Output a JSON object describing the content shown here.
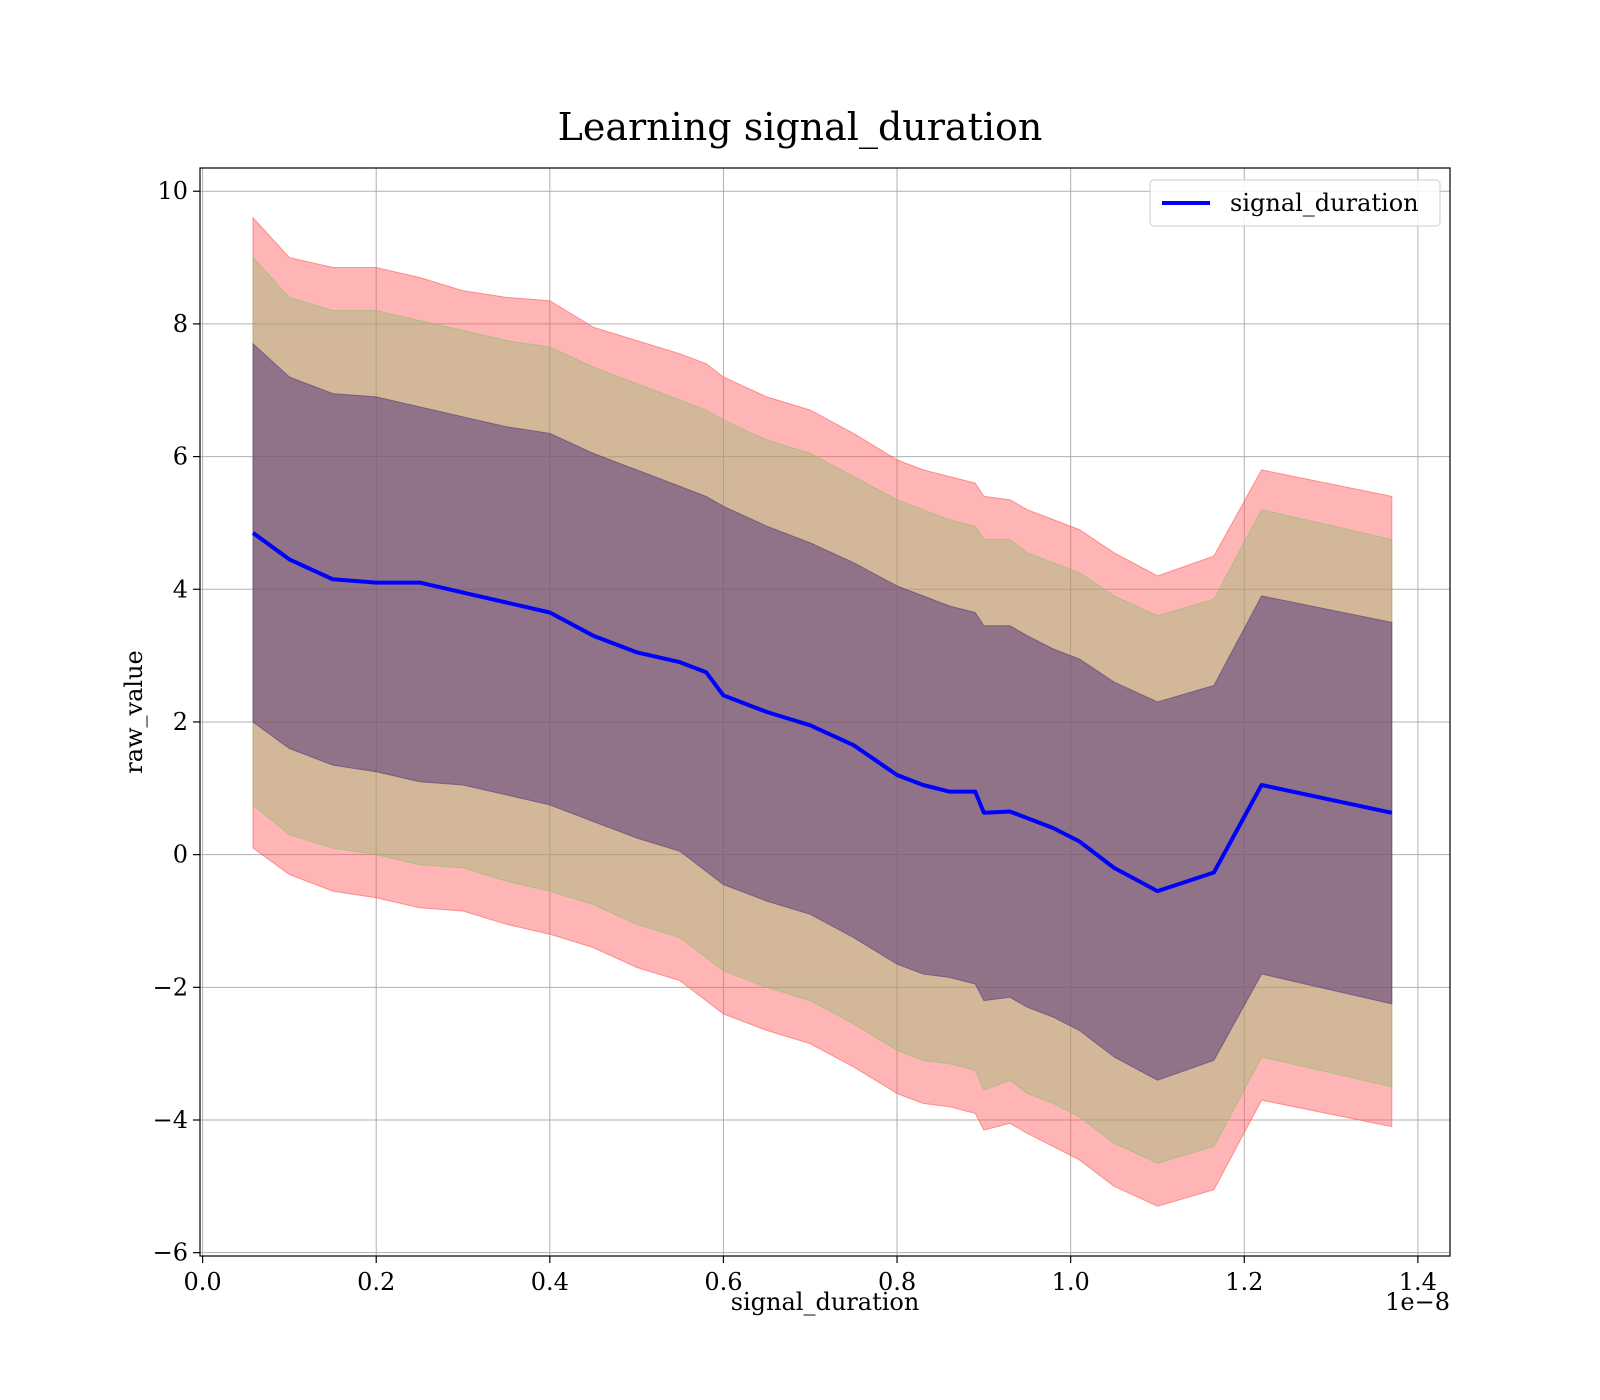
{
  "chart_data": {
    "type": "line",
    "title": "Learning signal_duration",
    "xlabel": "signal_duration",
    "ylabel": "raw_value",
    "x_offset_label": "1e−8",
    "xlim": [
      -0.003,
      1.437
    ],
    "ylim": [
      -6.05,
      10.35
    ],
    "x_ticks": [
      0.0,
      0.2,
      0.4,
      0.6,
      0.8,
      1.0,
      1.2,
      1.4
    ],
    "x_tick_labels": [
      "0.0",
      "0.2",
      "0.4",
      "0.6",
      "0.8",
      "1.0",
      "1.2",
      "1.4"
    ],
    "y_ticks": [
      -6,
      -4,
      -2,
      0,
      2,
      4,
      6,
      8,
      10
    ],
    "y_tick_labels": [
      "−6",
      "−4",
      "−2",
      "0",
      "2",
      "4",
      "6",
      "8",
      "10"
    ],
    "grid": true,
    "legend": {
      "position": "top-right",
      "entries": [
        "signal_duration"
      ]
    },
    "colors": {
      "line": "#0000ff",
      "band_outer": "#ff5a5a",
      "band_mid": "#8fbf70",
      "band_inner": "#5a3a7a"
    },
    "x": [
      0.058,
      0.1,
      0.15,
      0.2,
      0.25,
      0.3,
      0.35,
      0.4,
      0.45,
      0.5,
      0.55,
      0.58,
      0.6,
      0.65,
      0.7,
      0.75,
      0.8,
      0.83,
      0.86,
      0.89,
      0.9,
      0.93,
      0.95,
      0.98,
      1.01,
      1.05,
      1.1,
      1.165,
      1.22,
      1.37
    ],
    "series": [
      {
        "name": "signal_duration",
        "values": [
          4.85,
          4.45,
          4.15,
          4.1,
          4.1,
          3.95,
          3.8,
          3.65,
          3.3,
          3.05,
          2.9,
          2.75,
          2.4,
          2.15,
          1.95,
          1.65,
          1.2,
          1.05,
          0.95,
          0.95,
          0.63,
          0.65,
          0.55,
          0.4,
          0.2,
          -0.2,
          -0.55,
          -0.27,
          1.05,
          0.63
        ]
      }
    ],
    "bands": [
      {
        "name": "outer",
        "upper": [
          9.6,
          9.0,
          8.85,
          8.85,
          8.7,
          8.5,
          8.4,
          8.35,
          7.95,
          7.75,
          7.55,
          7.4,
          7.2,
          6.9,
          6.7,
          6.35,
          5.95,
          5.8,
          5.7,
          5.6,
          5.4,
          5.35,
          5.2,
          5.05,
          4.9,
          4.55,
          4.2,
          4.5,
          5.8,
          5.4
        ],
        "lower": [
          0.1,
          -0.3,
          -0.55,
          -0.65,
          -0.8,
          -0.85,
          -1.05,
          -1.2,
          -1.4,
          -1.7,
          -1.9,
          -2.2,
          -2.4,
          -2.65,
          -2.85,
          -3.2,
          -3.6,
          -3.75,
          -3.8,
          -3.9,
          -4.15,
          -4.05,
          -4.2,
          -4.4,
          -4.6,
          -5.0,
          -5.3,
          -5.05,
          -3.7,
          -4.1
        ]
      },
      {
        "name": "middle",
        "upper": [
          9.0,
          8.4,
          8.2,
          8.2,
          8.05,
          7.9,
          7.75,
          7.65,
          7.35,
          7.1,
          6.85,
          6.7,
          6.55,
          6.25,
          6.05,
          5.7,
          5.35,
          5.2,
          5.05,
          4.95,
          4.75,
          4.75,
          4.55,
          4.4,
          4.25,
          3.9,
          3.6,
          3.85,
          5.2,
          4.75
        ],
        "lower": [
          0.75,
          0.3,
          0.1,
          0.0,
          -0.15,
          -0.2,
          -0.4,
          -0.55,
          -0.75,
          -1.05,
          -1.25,
          -1.55,
          -1.75,
          -2.0,
          -2.2,
          -2.55,
          -2.95,
          -3.1,
          -3.15,
          -3.25,
          -3.55,
          -3.4,
          -3.6,
          -3.75,
          -3.95,
          -4.35,
          -4.65,
          -4.4,
          -3.05,
          -3.5
        ]
      },
      {
        "name": "inner",
        "upper": [
          7.7,
          7.2,
          6.95,
          6.9,
          6.75,
          6.6,
          6.45,
          6.35,
          6.05,
          5.8,
          5.55,
          5.4,
          5.25,
          4.95,
          4.7,
          4.4,
          4.05,
          3.9,
          3.75,
          3.65,
          3.45,
          3.45,
          3.3,
          3.1,
          2.95,
          2.6,
          2.3,
          2.55,
          3.9,
          3.5
        ],
        "lower": [
          2.0,
          1.6,
          1.35,
          1.25,
          1.1,
          1.05,
          0.9,
          0.75,
          0.5,
          0.25,
          0.05,
          -0.25,
          -0.45,
          -0.7,
          -0.9,
          -1.25,
          -1.65,
          -1.8,
          -1.85,
          -1.95,
          -2.2,
          -2.15,
          -2.3,
          -2.45,
          -2.65,
          -3.05,
          -3.4,
          -3.1,
          -1.8,
          -2.25
        ]
      }
    ]
  }
}
